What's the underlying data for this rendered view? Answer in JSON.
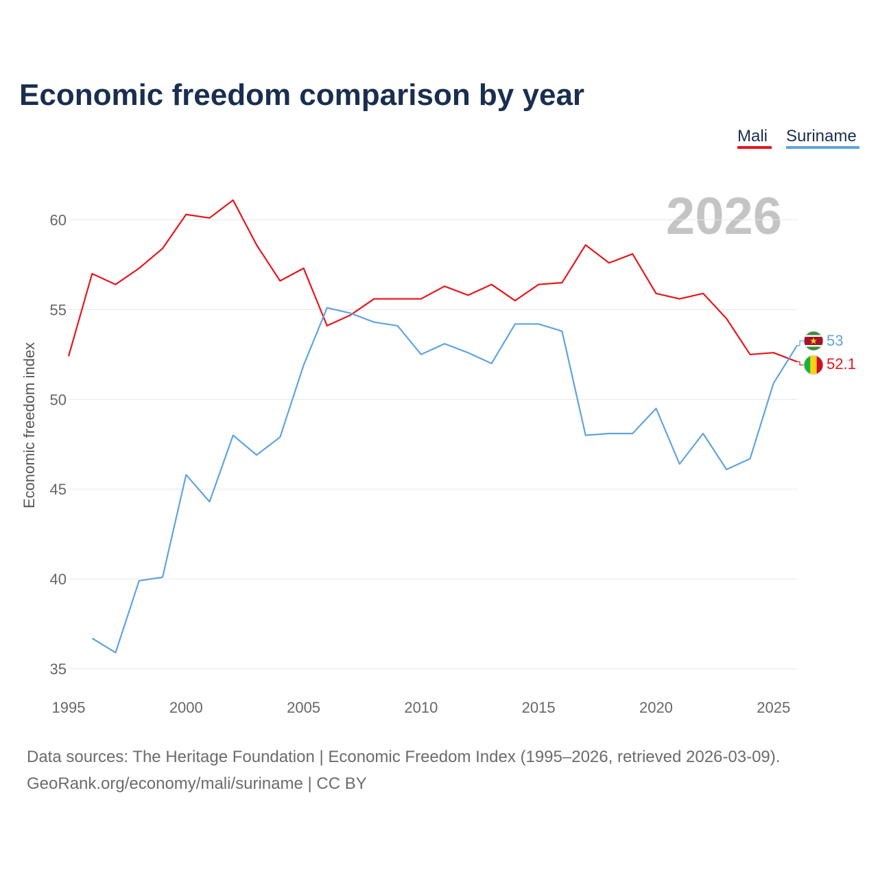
{
  "chart_data": {
    "type": "line",
    "title": "Economic freedom comparison by year",
    "ylabel": "Economic freedom index",
    "xlabel": "",
    "xlim": [
      1995,
      2026
    ],
    "ylim": [
      35,
      62.5
    ],
    "x_ticks": [
      1995,
      2000,
      2005,
      2010,
      2015,
      2020,
      2025
    ],
    "y_ticks": [
      35,
      40,
      45,
      50,
      55,
      60
    ],
    "current_year": "2026",
    "series": [
      {
        "name": "Mali",
        "color": "#e8141b",
        "end_label": "52.1",
        "flag": "mali-flag",
        "x": [
          1995,
          1996,
          1997,
          1998,
          1999,
          2000,
          2001,
          2002,
          2003,
          2004,
          2005,
          2006,
          2007,
          2008,
          2009,
          2010,
          2011,
          2012,
          2013,
          2014,
          2015,
          2016,
          2017,
          2018,
          2019,
          2020,
          2021,
          2022,
          2023,
          2024,
          2025,
          2026
        ],
        "values": [
          52.4,
          57.0,
          56.4,
          57.3,
          58.4,
          60.3,
          60.1,
          61.1,
          58.6,
          56.6,
          57.3,
          54.1,
          54.7,
          55.6,
          55.6,
          55.6,
          56.3,
          55.8,
          56.4,
          55.5,
          56.4,
          56.5,
          58.6,
          57.6,
          58.1,
          55.9,
          55.6,
          55.9,
          54.5,
          52.5,
          52.6,
          52.1
        ]
      },
      {
        "name": "Suriname",
        "color": "#5fa3e0",
        "end_label": "53",
        "flag": "suriname-flag",
        "x": [
          1996,
          1997,
          1998,
          1999,
          2000,
          2001,
          2002,
          2003,
          2004,
          2005,
          2006,
          2007,
          2008,
          2009,
          2010,
          2011,
          2012,
          2013,
          2014,
          2015,
          2016,
          2017,
          2018,
          2019,
          2020,
          2021,
          2022,
          2023,
          2024,
          2025,
          2026
        ],
        "values": [
          36.7,
          35.9,
          39.9,
          40.1,
          45.8,
          44.3,
          48.0,
          46.9,
          47.9,
          51.9,
          55.1,
          54.8,
          54.3,
          54.1,
          52.5,
          53.1,
          52.6,
          52.0,
          54.2,
          54.2,
          53.8,
          48.0,
          48.1,
          48.1,
          49.5,
          46.4,
          48.1,
          46.1,
          46.7,
          50.9,
          53.0
        ]
      }
    ]
  },
  "footer": {
    "line1": "Data sources: The Heritage Foundation | Economic Freedom Index (1995–2026, retrieved 2026-03-09).",
    "line2": "GeoRank.org/economy/mali/suriname | CC BY"
  }
}
